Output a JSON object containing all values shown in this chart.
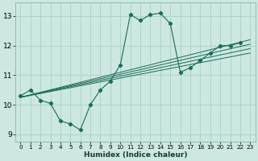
{
  "xlabel": "Humidex (Indice chaleur)",
  "bg_color": "#cce8e0",
  "grid_color": "#aacfc8",
  "line_color": "#1a6b5a",
  "xlim": [
    -0.5,
    23.5
  ],
  "ylim": [
    8.75,
    13.45
  ],
  "xticks": [
    0,
    1,
    2,
    3,
    4,
    5,
    6,
    7,
    8,
    9,
    10,
    11,
    12,
    13,
    14,
    15,
    16,
    17,
    18,
    19,
    20,
    21,
    22,
    23
  ],
  "yticks": [
    9,
    10,
    11,
    12,
    13
  ],
  "main_x": [
    0,
    1,
    2,
    3,
    4,
    5,
    6,
    7,
    8,
    9,
    10,
    11,
    12,
    13,
    14,
    15,
    16,
    17,
    18,
    19,
    20,
    21,
    22
  ],
  "main_y": [
    10.3,
    10.5,
    10.15,
    10.05,
    9.45,
    9.35,
    9.15,
    10.0,
    10.5,
    10.8,
    11.35,
    13.05,
    12.85,
    13.05,
    13.1,
    12.75,
    11.1,
    11.25,
    11.5,
    11.75,
    12.0,
    12.0,
    12.1
  ],
  "trend_lines": [
    {
      "x": [
        0,
        23
      ],
      "y": [
        10.25,
        12.2
      ]
    },
    {
      "x": [
        0,
        23
      ],
      "y": [
        10.25,
        12.05
      ]
    },
    {
      "x": [
        0,
        23
      ],
      "y": [
        10.25,
        11.9
      ]
    },
    {
      "x": [
        0,
        23
      ],
      "y": [
        10.25,
        11.75
      ]
    }
  ]
}
